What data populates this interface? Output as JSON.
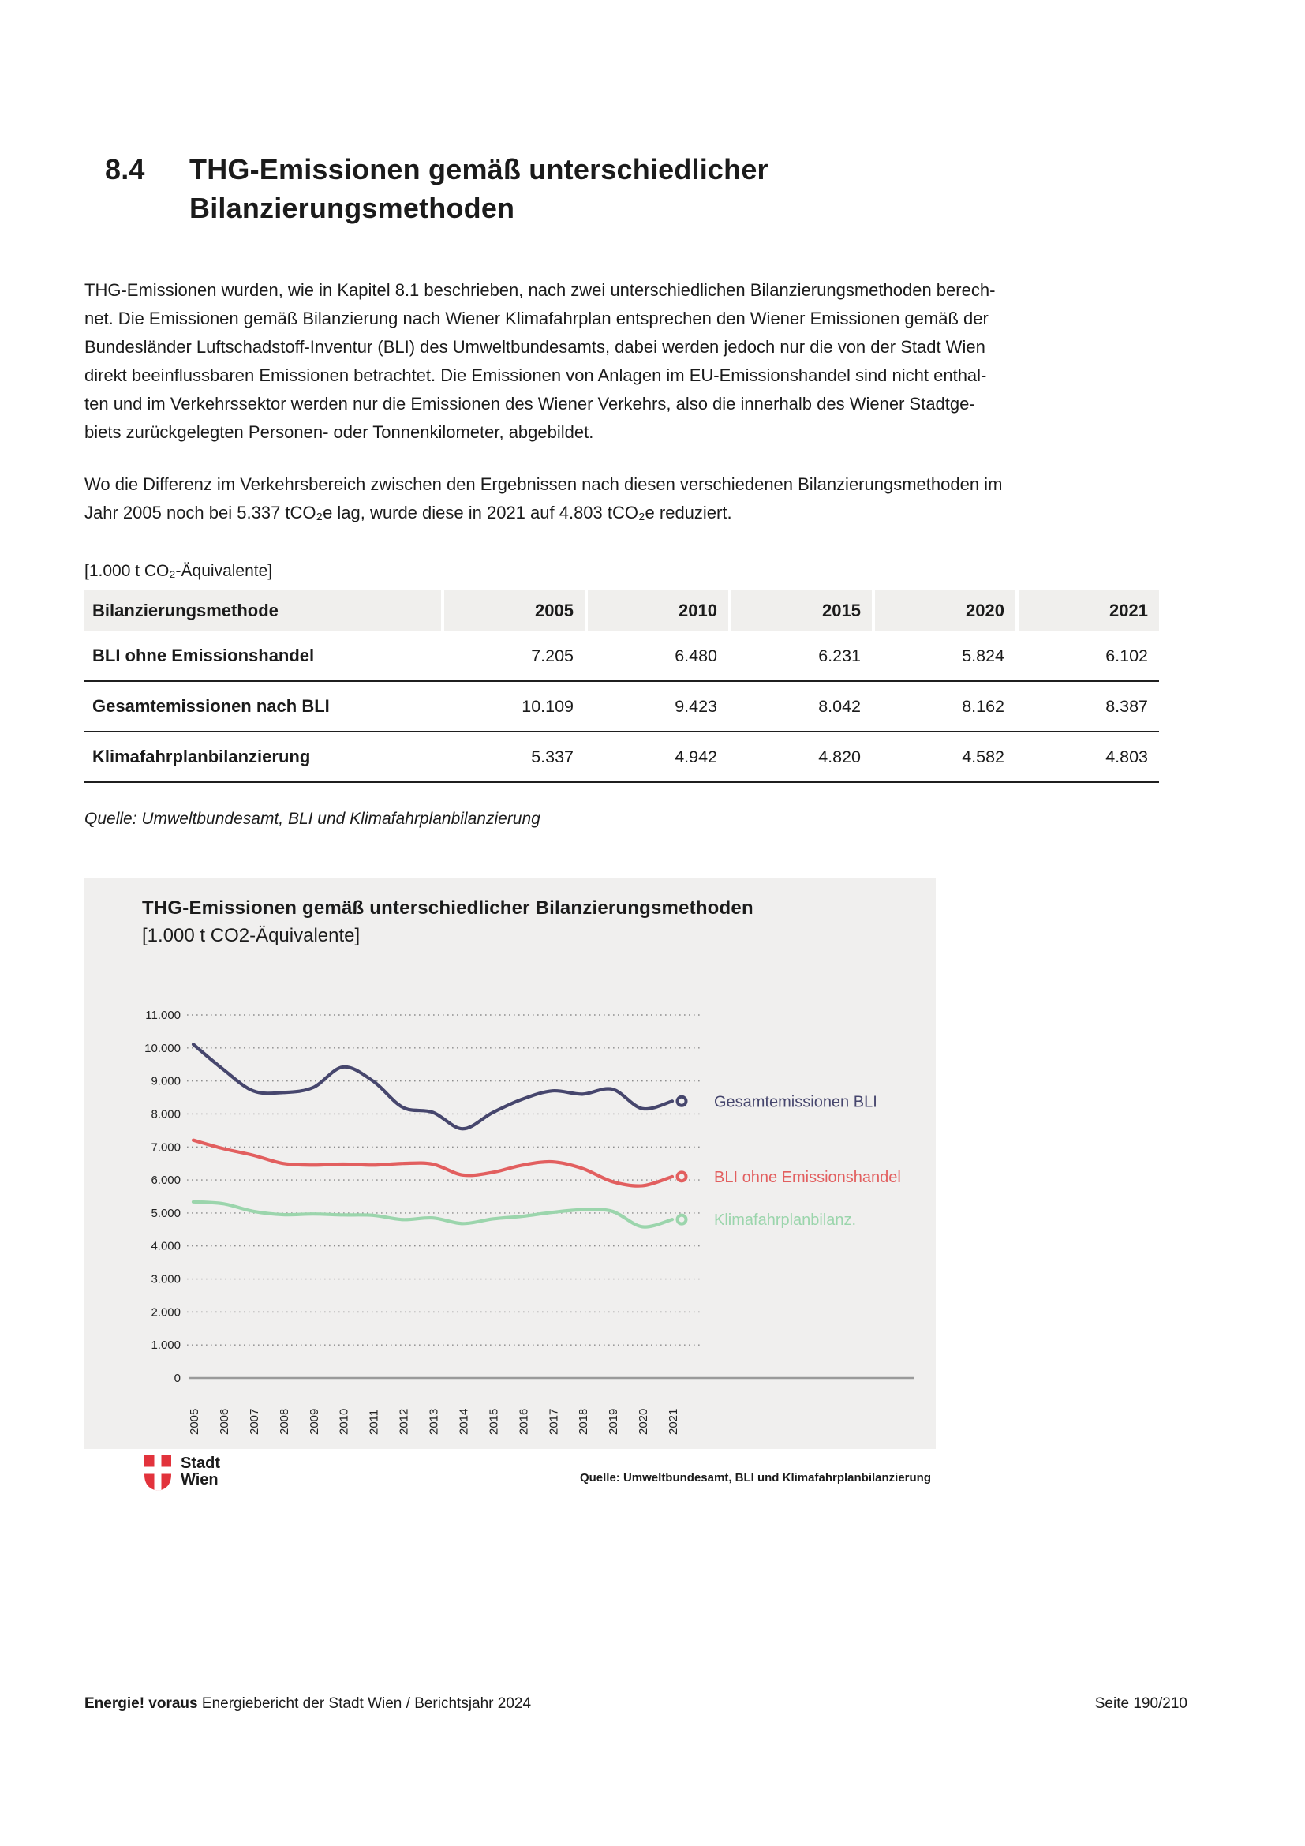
{
  "page": {
    "heading": {
      "number": "8.4",
      "title": "THG-Emissionen gemäß unterschiedlicher\nBilanzierungsmethoden"
    },
    "paragraph1": "THG-Emissionen wurden, wie in Kapitel 8.1 beschrieben, nach zwei unterschiedlichen Bilanzierungsmethoden berech-\nnet. Die Emissionen gemäß Bilanzierung nach Wiener Klimafahrplan entsprechen den Wiener Emissionen gemäß der\nBundesländer Luftschadstoff-Inventur (BLI) des Umweltbundesamts, dabei werden jedoch nur die von der Stadt Wien\ndirekt beeinflussbaren Emissionen betrachtet. Die Emissionen von Anlagen im EU-Emissionshandel sind nicht enthal-\nten und im Verkehrssektor werden nur die Emissionen des Wiener Verkehrs, also die innerhalb des Wiener Stadtge-\nbiets zurückgelegten Personen- oder Tonnenkilometer, abgebildet.",
    "paragraph2": "Wo die Differenz im Verkehrsbereich zwischen den Ergebnissen nach diesen verschiedenen Bilanzierungsmethoden im\nJahr 2005 noch bei 5.337 tCO₂e lag, wurde diese in 2021 auf 4.803 tCO₂e reduziert.",
    "footer": {
      "brand": "Energie! voraus",
      "title": "Energiebericht der Stadt Wien / Berichtsjahr 2024",
      "page": "Seite 190/210"
    }
  },
  "table": {
    "caption": "[1.000 t CO₂-Äquivalente]",
    "columns": [
      "Bilanzierungsmethode",
      "2005",
      "2010",
      "2015",
      "2020",
      "2021"
    ],
    "rows": [
      {
        "label": "BLI ohne Emissionshandel",
        "values": [
          "7.205",
          "6.480",
          "6.231",
          "5.824",
          "6.102"
        ]
      },
      {
        "label": "Gesamtemissionen nach BLI",
        "values": [
          "10.109",
          "9.423",
          "8.042",
          "8.162",
          "8.387"
        ]
      },
      {
        "label": "Klimafahrplanbilanzierung",
        "values": [
          "5.337",
          "4.942",
          "4.820",
          "4.582",
          "4.803"
        ]
      }
    ],
    "source": "Quelle: Umweltbundesamt, BLI und Klimafahrplanbilanzierung"
  },
  "chart": {
    "title": "THG-Emissionen gemäß unterschiedlicher Bilanzierungsmethoden",
    "subtitle": "[1.000 t CO2-Äquivalente]",
    "source": "Quelle: Umweltbundesamt, BLI und Klimafahrplanbilanzierung",
    "logo": {
      "line1": "Stadt",
      "line2": "Wien",
      "shield_color": "#e2333c"
    },
    "panel_background": "#f0efee"
  },
  "chart_data": {
    "type": "line",
    "title": "THG-Emissionen gemäß unterschiedlicher Bilanzierungsmethoden",
    "subtitle": "[1.000 t CO2-Äquivalente]",
    "xlabel": "",
    "ylabel": "",
    "x": [
      2005,
      2006,
      2007,
      2008,
      2009,
      2010,
      2011,
      2012,
      2013,
      2014,
      2015,
      2016,
      2017,
      2018,
      2019,
      2020,
      2021
    ],
    "series": [
      {
        "name": "Gesamtemissionen BLI",
        "color": "#46466d",
        "values": [
          10109,
          9350,
          8700,
          8650,
          8800,
          9423,
          9000,
          8200,
          8050,
          7550,
          8042,
          8450,
          8700,
          8600,
          8750,
          8162,
          8387
        ]
      },
      {
        "name": "BLI ohne Emissionshandel",
        "color": "#e25f5f",
        "values": [
          7205,
          6950,
          6750,
          6500,
          6450,
          6480,
          6450,
          6500,
          6480,
          6150,
          6231,
          6450,
          6550,
          6350,
          5950,
          5824,
          6102
        ]
      },
      {
        "name": "Klimafahrplanbilanz.",
        "color": "#9bd5ac",
        "values": [
          5337,
          5280,
          5050,
          4950,
          4970,
          4942,
          4930,
          4800,
          4850,
          4680,
          4820,
          4900,
          5020,
          5100,
          5050,
          4582,
          4803
        ]
      }
    ],
    "ylim": [
      0,
      11000
    ],
    "yticks": [
      0,
      1000,
      2000,
      3000,
      4000,
      5000,
      6000,
      7000,
      8000,
      9000,
      10000,
      11000
    ],
    "ytick_labels": [
      "0",
      "1.000",
      "2.000",
      "3.000",
      "4.000",
      "5.000",
      "6.000",
      "7.000",
      "8.000",
      "9.000",
      "10.000",
      "11.000"
    ],
    "grid": "dotted horizontal gridlines",
    "legend_position": "right of line end markers"
  }
}
